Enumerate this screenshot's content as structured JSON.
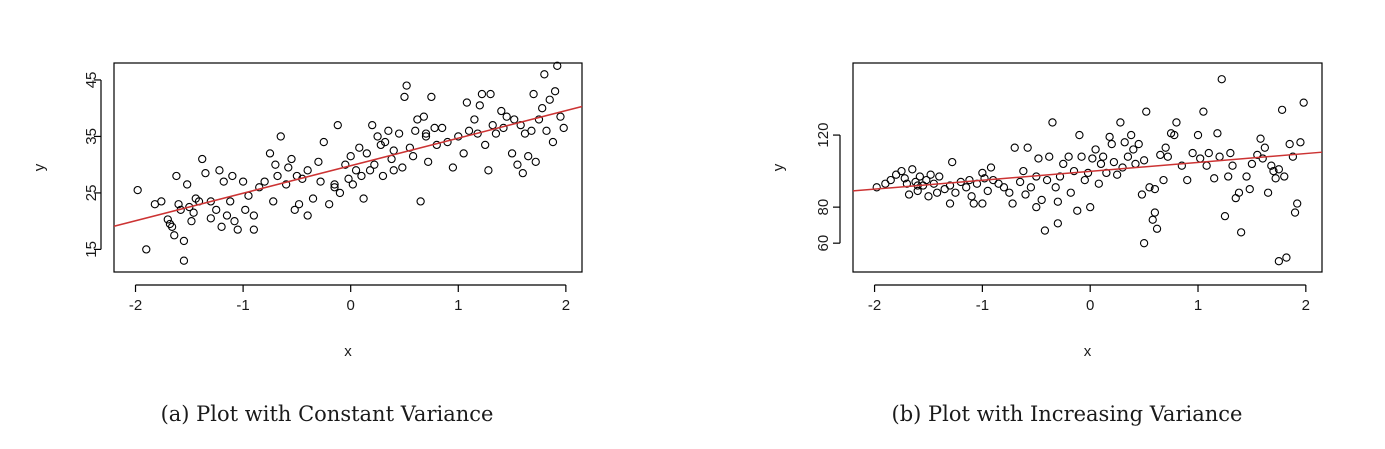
{
  "chart_data": [
    {
      "type": "scatter",
      "caption": "(a) Plot with Constant Variance",
      "xlabel": "x",
      "ylabel": "y",
      "xlim": [
        -2.2,
        2.15
      ],
      "ylim": [
        11,
        48
      ],
      "xticks": [
        -2,
        -1,
        0,
        1,
        2
      ],
      "yticks": [
        15,
        25,
        35,
        45
      ],
      "fit_line": {
        "color": "#cc3333",
        "points": [
          [
            -2.2,
            19.1
          ],
          [
            2.15,
            40.3
          ]
        ]
      },
      "points": [
        [
          -1.98,
          25.5
        ],
        [
          -1.82,
          23.0
        ],
        [
          -1.76,
          23.5
        ],
        [
          -1.7,
          20.3
        ],
        [
          -1.68,
          19.5
        ],
        [
          -1.66,
          19.0
        ],
        [
          -1.64,
          17.5
        ],
        [
          -1.62,
          28.0
        ],
        [
          -1.58,
          22.0
        ],
        [
          -1.55,
          16.5
        ],
        [
          -1.52,
          26.5
        ],
        [
          -1.5,
          22.5
        ],
        [
          -1.48,
          20.0
        ],
        [
          -1.46,
          21.5
        ],
        [
          -1.44,
          24.0
        ],
        [
          -1.41,
          23.5
        ],
        [
          -1.38,
          31.0
        ],
        [
          -1.35,
          28.5
        ],
        [
          -1.3,
          20.5
        ],
        [
          -1.25,
          22.0
        ],
        [
          -1.22,
          29.0
        ],
        [
          -1.2,
          19.0
        ],
        [
          -1.18,
          27.0
        ],
        [
          -1.15,
          21.0
        ],
        [
          -1.12,
          23.5
        ],
        [
          -1.08,
          20.0
        ],
        [
          -1.05,
          18.5
        ],
        [
          -1.0,
          27.0
        ],
        [
          -0.98,
          22.0
        ],
        [
          -0.95,
          24.5
        ],
        [
          -0.9,
          21.0
        ],
        [
          -0.85,
          26.0
        ],
        [
          -0.8,
          27.0
        ],
        [
          -0.75,
          32.0
        ],
        [
          -0.72,
          23.5
        ],
        [
          -0.68,
          28.0
        ],
        [
          -0.65,
          35.0
        ],
        [
          -0.6,
          26.5
        ],
        [
          -0.58,
          29.5
        ],
        [
          -0.55,
          31.0
        ],
        [
          -0.52,
          22.0
        ],
        [
          -0.5,
          28.0
        ],
        [
          -0.48,
          23.0
        ],
        [
          -0.45,
          27.5
        ],
        [
          -0.4,
          29.0
        ],
        [
          -0.35,
          24.0
        ],
        [
          -0.3,
          30.5
        ],
        [
          -0.28,
          27.0
        ],
        [
          -0.25,
          34.0
        ],
        [
          -0.2,
          23.0
        ],
        [
          -0.15,
          26.0
        ],
        [
          -0.12,
          37.0
        ],
        [
          -0.1,
          25.0
        ],
        [
          -0.05,
          30.0
        ],
        [
          -0.02,
          27.5
        ],
        [
          0.0,
          31.5
        ],
        [
          0.02,
          26.5
        ],
        [
          0.05,
          29.0
        ],
        [
          0.08,
          33.0
        ],
        [
          0.1,
          28.0
        ],
        [
          0.12,
          24.0
        ],
        [
          0.15,
          32.0
        ],
        [
          0.18,
          29.0
        ],
        [
          0.2,
          37.0
        ],
        [
          0.22,
          30.0
        ],
        [
          0.25,
          35.0
        ],
        [
          0.28,
          33.5
        ],
        [
          0.3,
          28.0
        ],
        [
          0.32,
          34.0
        ],
        [
          0.35,
          36.0
        ],
        [
          0.38,
          31.0
        ],
        [
          0.4,
          32.5
        ],
        [
          0.45,
          35.5
        ],
        [
          0.48,
          29.5
        ],
        [
          0.5,
          42.0
        ],
        [
          0.52,
          44.0
        ],
        [
          0.55,
          33.0
        ],
        [
          0.58,
          31.5
        ],
        [
          0.6,
          36.0
        ],
        [
          0.62,
          38.0
        ],
        [
          0.65,
          23.5
        ],
        [
          0.68,
          38.5
        ],
        [
          0.7,
          35.0
        ],
        [
          0.72,
          30.5
        ],
        [
          0.75,
          42.0
        ],
        [
          0.78,
          36.5
        ],
        [
          0.8,
          33.5
        ],
        [
          0.85,
          36.5
        ],
        [
          0.9,
          34.0
        ],
        [
          0.95,
          29.5
        ],
        [
          1.0,
          35.0
        ],
        [
          1.05,
          32.0
        ],
        [
          1.08,
          41.0
        ],
        [
          1.1,
          36.0
        ],
        [
          1.15,
          38.0
        ],
        [
          1.18,
          35.5
        ],
        [
          1.22,
          42.5
        ],
        [
          1.25,
          33.5
        ],
        [
          1.28,
          29.0
        ],
        [
          1.3,
          42.5
        ],
        [
          1.32,
          37.0
        ],
        [
          1.35,
          35.5
        ],
        [
          1.4,
          39.5
        ],
        [
          1.42,
          36.5
        ],
        [
          1.45,
          38.5
        ],
        [
          1.5,
          32.0
        ],
        [
          1.52,
          38.0
        ],
        [
          1.55,
          30.0
        ],
        [
          1.58,
          37.0
        ],
        [
          1.6,
          28.5
        ],
        [
          1.62,
          35.5
        ],
        [
          1.65,
          31.5
        ],
        [
          1.68,
          36.0
        ],
        [
          1.7,
          42.5
        ],
        [
          1.72,
          30.5
        ],
        [
          1.75,
          38.0
        ],
        [
          1.78,
          40.0
        ],
        [
          1.8,
          46.0
        ],
        [
          1.82,
          36.0
        ],
        [
          1.85,
          41.5
        ],
        [
          1.88,
          34.0
        ],
        [
          1.9,
          43.0
        ],
        [
          1.92,
          47.5
        ],
        [
          1.95,
          38.5
        ],
        [
          1.98,
          36.5
        ],
        [
          -1.9,
          15.0
        ],
        [
          -1.55,
          13.0
        ],
        [
          -1.6,
          23.0
        ],
        [
          -1.1,
          28.0
        ],
        [
          -0.9,
          18.5
        ],
        [
          -0.4,
          21.0
        ],
        [
          0.7,
          35.5
        ],
        [
          1.2,
          40.5
        ],
        [
          -0.7,
          30.0
        ],
        [
          -1.3,
          23.5
        ],
        [
          -0.15,
          26.5
        ],
        [
          0.4,
          29.0
        ]
      ]
    },
    {
      "type": "scatter",
      "caption": "(b) Plot with Increasing Variance",
      "xlabel": "x",
      "ylabel": "y",
      "xlim": [
        -2.2,
        2.15
      ],
      "ylim": [
        44,
        160
      ],
      "xticks": [
        -2,
        -1,
        0,
        1,
        2
      ],
      "yticks": [
        60,
        80,
        120
      ],
      "fit_line": {
        "color": "#cc3333",
        "points": [
          [
            -2.2,
            89.0
          ],
          [
            2.15,
            110.5
          ]
        ]
      },
      "points": [
        [
          -1.98,
          91.0
        ],
        [
          -1.9,
          93.0
        ],
        [
          -1.85,
          95.0
        ],
        [
          -1.8,
          98.0
        ],
        [
          -1.75,
          100.0
        ],
        [
          -1.72,
          96.0
        ],
        [
          -1.7,
          93.0
        ],
        [
          -1.68,
          87.0
        ],
        [
          -1.65,
          101.0
        ],
        [
          -1.62,
          94.0
        ],
        [
          -1.6,
          89.0
        ],
        [
          -1.58,
          97.0
        ],
        [
          -1.55,
          92.0
        ],
        [
          -1.52,
          95.0
        ],
        [
          -1.5,
          86.0
        ],
        [
          -1.48,
          98.0
        ],
        [
          -1.45,
          93.0
        ],
        [
          -1.42,
          88.0
        ],
        [
          -1.4,
          97.0
        ],
        [
          -1.35,
          90.0
        ],
        [
          -1.3,
          92.0
        ],
        [
          -1.28,
          105.0
        ],
        [
          -1.25,
          88.0
        ],
        [
          -1.2,
          94.0
        ],
        [
          -1.15,
          91.0
        ],
        [
          -1.12,
          95.0
        ],
        [
          -1.1,
          86.0
        ],
        [
          -1.08,
          82.0
        ],
        [
          -1.05,
          93.0
        ],
        [
          -1.0,
          99.0
        ],
        [
          -0.98,
          96.0
        ],
        [
          -0.95,
          89.0
        ],
        [
          -0.92,
          102.0
        ],
        [
          -0.9,
          95.0
        ],
        [
          -0.85,
          93.0
        ],
        [
          -0.8,
          91.0
        ],
        [
          -0.75,
          88.0
        ],
        [
          -0.72,
          82.0
        ],
        [
          -0.7,
          113.0
        ],
        [
          -0.65,
          94.0
        ],
        [
          -0.62,
          100.0
        ],
        [
          -0.6,
          87.0
        ],
        [
          -0.58,
          113.0
        ],
        [
          -0.55,
          91.0
        ],
        [
          -0.5,
          97.0
        ],
        [
          -0.48,
          107.0
        ],
        [
          -0.45,
          84.0
        ],
        [
          -0.42,
          67.0
        ],
        [
          -0.4,
          95.0
        ],
        [
          -0.38,
          108.0
        ],
        [
          -0.35,
          127.0
        ],
        [
          -0.32,
          91.0
        ],
        [
          -0.3,
          83.0
        ],
        [
          -0.28,
          97.0
        ],
        [
          -0.25,
          104.0
        ],
        [
          -0.2,
          108.0
        ],
        [
          -0.18,
          88.0
        ],
        [
          -0.15,
          100.0
        ],
        [
          -0.12,
          78.0
        ],
        [
          -0.1,
          120.0
        ],
        [
          -0.08,
          108.0
        ],
        [
          -0.05,
          95.0
        ],
        [
          -0.02,
          99.0
        ],
        [
          0.0,
          80.0
        ],
        [
          0.02,
          107.0
        ],
        [
          0.05,
          112.0
        ],
        [
          0.08,
          93.0
        ],
        [
          0.1,
          104.0
        ],
        [
          0.12,
          108.0
        ],
        [
          0.15,
          99.0
        ],
        [
          0.18,
          119.0
        ],
        [
          0.2,
          115.0
        ],
        [
          0.22,
          105.0
        ],
        [
          0.25,
          98.0
        ],
        [
          0.28,
          127.0
        ],
        [
          0.3,
          102.0
        ],
        [
          0.32,
          116.0
        ],
        [
          0.35,
          108.0
        ],
        [
          0.38,
          120.0
        ],
        [
          0.4,
          112.0
        ],
        [
          0.42,
          104.0
        ],
        [
          0.45,
          115.0
        ],
        [
          0.48,
          87.0
        ],
        [
          0.5,
          106.0
        ],
        [
          0.52,
          133.0
        ],
        [
          0.55,
          91.0
        ],
        [
          0.58,
          73.0
        ],
        [
          0.6,
          90.0
        ],
        [
          0.62,
          68.0
        ],
        [
          0.65,
          109.0
        ],
        [
          0.68,
          95.0
        ],
        [
          0.7,
          113.0
        ],
        [
          0.72,
          108.0
        ],
        [
          0.75,
          121.0
        ],
        [
          0.78,
          120.0
        ],
        [
          0.8,
          127.0
        ],
        [
          0.85,
          103.0
        ],
        [
          0.9,
          95.0
        ],
        [
          0.95,
          110.0
        ],
        [
          1.0,
          120.0
        ],
        [
          1.02,
          107.0
        ],
        [
          1.05,
          133.0
        ],
        [
          1.08,
          103.0
        ],
        [
          1.1,
          110.0
        ],
        [
          1.15,
          96.0
        ],
        [
          1.18,
          121.0
        ],
        [
          1.2,
          108.0
        ],
        [
          1.22,
          151.0
        ],
        [
          1.25,
          75.0
        ],
        [
          1.28,
          97.0
        ],
        [
          1.3,
          110.0
        ],
        [
          1.32,
          103.0
        ],
        [
          1.35,
          85.0
        ],
        [
          1.38,
          88.0
        ],
        [
          1.4,
          66.0
        ],
        [
          1.45,
          97.0
        ],
        [
          1.48,
          90.0
        ],
        [
          1.5,
          104.0
        ],
        [
          1.55,
          109.0
        ],
        [
          1.58,
          118.0
        ],
        [
          1.6,
          107.0
        ],
        [
          1.62,
          113.0
        ],
        [
          1.65,
          88.0
        ],
        [
          1.68,
          103.0
        ],
        [
          1.7,
          100.0
        ],
        [
          1.72,
          96.0
        ],
        [
          1.75,
          101.0
        ],
        [
          1.78,
          134.0
        ],
        [
          1.8,
          97.0
        ],
        [
          1.82,
          52.0
        ],
        [
          1.85,
          115.0
        ],
        [
          1.88,
          108.0
        ],
        [
          1.9,
          77.0
        ],
        [
          1.92,
          82.0
        ],
        [
          1.95,
          116.0
        ],
        [
          1.98,
          138.0
        ],
        [
          -1.6,
          92.0
        ],
        [
          -1.3,
          82.0
        ],
        [
          -1.0,
          82.0
        ],
        [
          -0.5,
          80.0
        ],
        [
          -0.3,
          71.0
        ],
        [
          0.5,
          60.0
        ],
        [
          0.6,
          77.0
        ],
        [
          1.75,
          50.0
        ]
      ]
    }
  ]
}
